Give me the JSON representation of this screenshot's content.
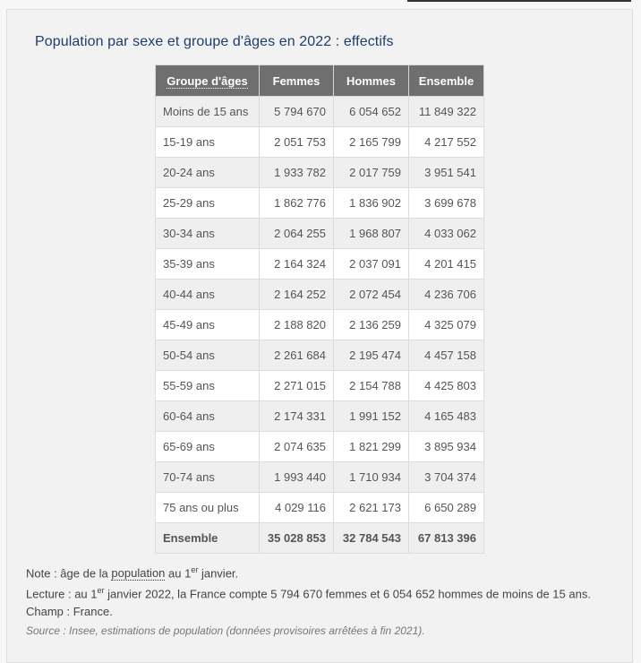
{
  "title": "Population par sexe et groupe d'âges en 2022 : effectifs",
  "table": {
    "headers": [
      "Groupe d'âges",
      "Femmes",
      "Hommes",
      "Ensemble"
    ],
    "rows": [
      [
        "Moins de 15 ans",
        "5 794 670",
        "6 054 652",
        "11 849 322"
      ],
      [
        "15-19 ans",
        "2 051 753",
        "2 165 799",
        "4 217 552"
      ],
      [
        "20-24 ans",
        "1 933 782",
        "2 017 759",
        "3 951 541"
      ],
      [
        "25-29 ans",
        "1 862 776",
        "1 836 902",
        "3 699 678"
      ],
      [
        "30-34 ans",
        "2 064 255",
        "1 968 807",
        "4 033 062"
      ],
      [
        "35-39 ans",
        "2 164 324",
        "2 037 091",
        "4 201 415"
      ],
      [
        "40-44 ans",
        "2 164 252",
        "2 072 454",
        "4 236 706"
      ],
      [
        "45-49 ans",
        "2 188 820",
        "2 136 259",
        "4 325 079"
      ],
      [
        "50-54 ans",
        "2 261 684",
        "2 195 474",
        "4 457 158"
      ],
      [
        "55-59 ans",
        "2 271 015",
        "2 154 788",
        "4 425 803"
      ],
      [
        "60-64 ans",
        "2 174 331",
        "1 991 152",
        "4 165 483"
      ],
      [
        "65-69 ans",
        "2 074 635",
        "1 821 299",
        "3 895 934"
      ],
      [
        "70-74 ans",
        "1 993 440",
        "1 710 934",
        "3 704 374"
      ],
      [
        "75 ans ou plus",
        "4 029 116",
        "2 621 173",
        "6 650 289"
      ]
    ],
    "total": [
      "Ensemble",
      "35 028 853",
      "32 784 543",
      "67 813 396"
    ]
  },
  "notes": {
    "note_prefix": "Note : âge de la ",
    "note_link": "population",
    "note_mid": " au 1",
    "note_sup": "er",
    "note_suffix": " janvier.",
    "lecture_prefix": "Lecture : au 1",
    "lecture_sup": "er",
    "lecture_suffix": " janvier 2022, la France compte 5 794 670 femmes et 6 054 652 hommes de moins de 15 ans.",
    "champ": "Champ : France.",
    "source": "Source : Insee, estimations de population (données provisoires arrêtées à fin 2021)."
  }
}
